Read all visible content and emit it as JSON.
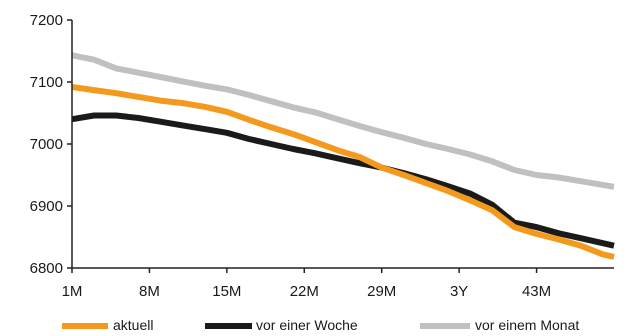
{
  "chart_data": {
    "type": "line",
    "title": "",
    "xlabel": "",
    "ylabel": "",
    "ylim": [
      6800,
      7200
    ],
    "yticks": [
      6800,
      6900,
      7000,
      7100,
      7200
    ],
    "ytick_labels": [
      "6800",
      "6900",
      "7000",
      "7100",
      "7200"
    ],
    "xtick_labels": [
      "1M",
      "8M",
      "15M",
      "22M",
      "29M",
      "3Y",
      "43M"
    ],
    "xlim": [
      1,
      50
    ],
    "xtick_positions": [
      1,
      8,
      15,
      22,
      29,
      36,
      43
    ],
    "grid": false,
    "legend_position": "bottom",
    "x": [
      1,
      3,
      5,
      7,
      9,
      11,
      13,
      15,
      17,
      19,
      21,
      23,
      25,
      27,
      29,
      31,
      33,
      35,
      37,
      39,
      41,
      43,
      45,
      47,
      49,
      50
    ],
    "series": [
      {
        "name": "aktuell",
        "color": "#f39a1e",
        "values": [
          7092,
          7087,
          7082,
          7076,
          7070,
          7066,
          7060,
          7052,
          7039,
          7027,
          7016,
          7003,
          6990,
          6979,
          6962,
          6950,
          6937,
          6924,
          6909,
          6893,
          6866,
          6855,
          6846,
          6836,
          6822,
          6818
        ]
      },
      {
        "name": "vor einer Woche",
        "color": "#1a1a1a",
        "values": [
          7040,
          7046,
          7046,
          7042,
          7036,
          7030,
          7024,
          7018,
          7008,
          7000,
          6992,
          6985,
          6977,
          6969,
          6962,
          6953,
          6943,
          6932,
          6920,
          6902,
          6873,
          6866,
          6856,
          6848,
          6840,
          6836
        ]
      },
      {
        "name": "vor einem Monat",
        "color": "#c0c0c0",
        "values": [
          7143,
          7136,
          7122,
          7115,
          7108,
          7101,
          7094,
          7088,
          7079,
          7069,
          7059,
          7051,
          7040,
          7029,
          7019,
          7010,
          7000,
          6992,
          6983,
          6972,
          6958,
          6950,
          6946,
          6940,
          6934,
          6931
        ]
      }
    ]
  }
}
